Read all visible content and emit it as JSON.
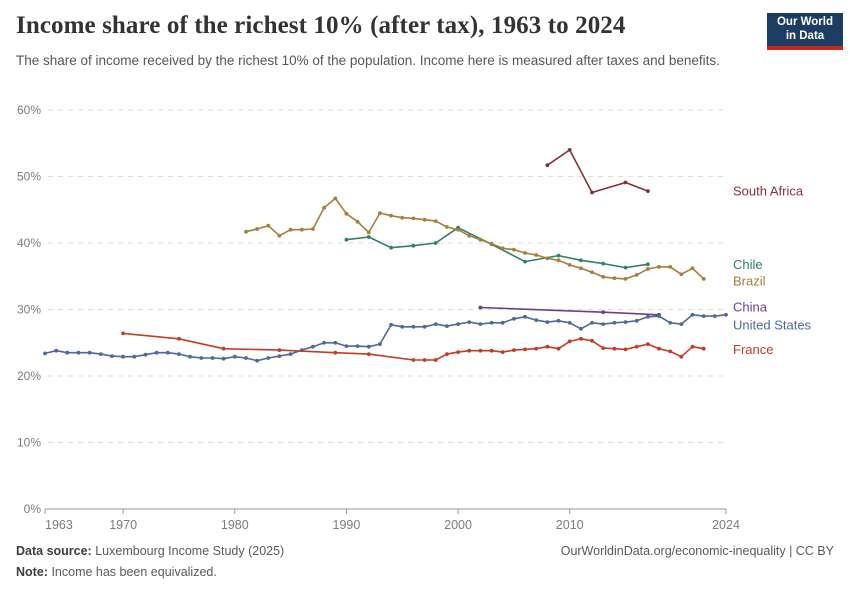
{
  "header": {
    "title": "Income share of the richest 10% (after tax), 1963 to 2024",
    "subtitle": "The share of income received by the richest 10% of the population. Income here is measured after taxes and benefits.",
    "logo": {
      "line1": "Our World",
      "line2": "in Data",
      "bg_color": "#1d3d63",
      "accent_color": "#c52a1b"
    }
  },
  "footer": {
    "source_label": "Data source:",
    "source_text": "Luxembourg Income Study (2025)",
    "link": "OurWorldinData.org/economic-inequality | CC BY",
    "note_label": "Note:",
    "note_text": "Income has been equivalized."
  },
  "chart_data": {
    "type": "line",
    "title": "Income share of the richest 10% (after tax), 1963 to 2024",
    "xlabel": "",
    "ylabel": "",
    "x_range": [
      1963,
      2024
    ],
    "ylim": [
      0,
      60
    ],
    "grid": "horizontal-dashed",
    "legend_position": "right-of-line-ends",
    "x_ticks": [
      1963,
      1970,
      1980,
      1990,
      2000,
      2010,
      2024
    ],
    "y_ticks": [
      0,
      10,
      20,
      30,
      40,
      50,
      60
    ],
    "y_tick_suffix": "%",
    "axis_color": "#999999",
    "grid_color": "#dcdcdc",
    "tick_label_color": "#7d7d7d",
    "series": [
      {
        "name": "South Africa",
        "color": "#883039",
        "label_dy": 0,
        "points": [
          [
            2008,
            51.7
          ],
          [
            2010,
            54.0
          ],
          [
            2012,
            47.6
          ],
          [
            2015,
            49.1
          ],
          [
            2017,
            47.8
          ]
        ]
      },
      {
        "name": "Chile",
        "color": "#2C8465",
        "label_dy": 0,
        "points": [
          [
            1990,
            40.5
          ],
          [
            1992,
            40.9
          ],
          [
            1994,
            39.3
          ],
          [
            1996,
            39.6
          ],
          [
            1998,
            40.0
          ],
          [
            2000,
            42.3
          ],
          [
            2003,
            39.8
          ],
          [
            2006,
            37.2
          ],
          [
            2009,
            38.1
          ],
          [
            2011,
            37.4
          ],
          [
            2013,
            36.9
          ],
          [
            2015,
            36.3
          ],
          [
            2017,
            36.8
          ]
        ]
      },
      {
        "name": "Brazil",
        "color": "#A87E3B",
        "label_dy": 2,
        "points": [
          [
            1981,
            41.7
          ],
          [
            1982,
            42.1
          ],
          [
            1983,
            42.6
          ],
          [
            1984,
            41.1
          ],
          [
            1985,
            42.0
          ],
          [
            1986,
            42.0
          ],
          [
            1987,
            42.1
          ],
          [
            1988,
            45.3
          ],
          [
            1989,
            46.7
          ],
          [
            1990,
            44.4
          ],
          [
            1991,
            43.2
          ],
          [
            1992,
            41.6
          ],
          [
            1993,
            44.5
          ],
          [
            1994,
            44.1
          ],
          [
            1995,
            43.8
          ],
          [
            1996,
            43.7
          ],
          [
            1997,
            43.5
          ],
          [
            1998,
            43.3
          ],
          [
            1999,
            42.4
          ],
          [
            2000,
            42.0
          ],
          [
            2001,
            41.1
          ],
          [
            2002,
            40.5
          ],
          [
            2003,
            39.9
          ],
          [
            2004,
            39.2
          ],
          [
            2005,
            39.0
          ],
          [
            2006,
            38.5
          ],
          [
            2007,
            38.2
          ],
          [
            2008,
            37.7
          ],
          [
            2009,
            37.4
          ],
          [
            2010,
            36.7
          ],
          [
            2011,
            36.2
          ],
          [
            2012,
            35.6
          ],
          [
            2013,
            34.9
          ],
          [
            2014,
            34.7
          ],
          [
            2015,
            34.6
          ],
          [
            2016,
            35.2
          ],
          [
            2017,
            36.1
          ],
          [
            2018,
            36.4
          ],
          [
            2019,
            36.4
          ],
          [
            2020,
            35.3
          ],
          [
            2021,
            36.2
          ],
          [
            2022,
            34.6
          ]
        ]
      },
      {
        "name": "China",
        "color": "#6D3E91",
        "label_dy": -8,
        "points": [
          [
            2002,
            30.3
          ],
          [
            2013,
            29.6
          ],
          [
            2018,
            29.2
          ]
        ]
      },
      {
        "name": "United States",
        "color": "#4C6A9C",
        "label_dy": 10,
        "points": [
          [
            1963,
            23.4
          ],
          [
            1964,
            23.8
          ],
          [
            1965,
            23.5
          ],
          [
            1966,
            23.5
          ],
          [
            1967,
            23.5
          ],
          [
            1968,
            23.3
          ],
          [
            1969,
            23.0
          ],
          [
            1970,
            22.9
          ],
          [
            1971,
            22.9
          ],
          [
            1972,
            23.2
          ],
          [
            1973,
            23.5
          ],
          [
            1974,
            23.5
          ],
          [
            1975,
            23.3
          ],
          [
            1976,
            22.9
          ],
          [
            1977,
            22.7
          ],
          [
            1978,
            22.7
          ],
          [
            1979,
            22.6
          ],
          [
            1980,
            22.9
          ],
          [
            1981,
            22.7
          ],
          [
            1982,
            22.3
          ],
          [
            1983,
            22.7
          ],
          [
            1984,
            23.0
          ],
          [
            1985,
            23.3
          ],
          [
            1986,
            23.9
          ],
          [
            1987,
            24.4
          ],
          [
            1988,
            25.0
          ],
          [
            1989,
            25.0
          ],
          [
            1990,
            24.5
          ],
          [
            1991,
            24.5
          ],
          [
            1992,
            24.4
          ],
          [
            1993,
            24.8
          ],
          [
            1994,
            27.7
          ],
          [
            1995,
            27.4
          ],
          [
            1996,
            27.4
          ],
          [
            1997,
            27.4
          ],
          [
            1998,
            27.8
          ],
          [
            1999,
            27.5
          ],
          [
            2000,
            27.8
          ],
          [
            2001,
            28.1
          ],
          [
            2002,
            27.8
          ],
          [
            2003,
            28.0
          ],
          [
            2004,
            28.0
          ],
          [
            2005,
            28.6
          ],
          [
            2006,
            28.9
          ],
          [
            2007,
            28.4
          ],
          [
            2008,
            28.1
          ],
          [
            2009,
            28.3
          ],
          [
            2010,
            28.0
          ],
          [
            2011,
            27.1
          ],
          [
            2012,
            28.0
          ],
          [
            2013,
            27.8
          ],
          [
            2014,
            28.0
          ],
          [
            2015,
            28.1
          ],
          [
            2016,
            28.3
          ],
          [
            2017,
            28.9
          ],
          [
            2018,
            29.0
          ],
          [
            2019,
            28.0
          ],
          [
            2020,
            27.8
          ],
          [
            2021,
            29.2
          ],
          [
            2022,
            29.0
          ],
          [
            2023,
            29.0
          ],
          [
            2024,
            29.2
          ]
        ]
      },
      {
        "name": "France",
        "color": "#C13D26",
        "label_dy": 1,
        "points": [
          [
            1970,
            26.4
          ],
          [
            1975,
            25.6
          ],
          [
            1979,
            24.1
          ],
          [
            1984,
            23.9
          ],
          [
            1989,
            23.5
          ],
          [
            1992,
            23.3
          ],
          [
            1996,
            22.4
          ],
          [
            1997,
            22.4
          ],
          [
            1998,
            22.4
          ],
          [
            1999,
            23.3
          ],
          [
            2000,
            23.6
          ],
          [
            2001,
            23.8
          ],
          [
            2002,
            23.8
          ],
          [
            2003,
            23.8
          ],
          [
            2004,
            23.6
          ],
          [
            2005,
            23.9
          ],
          [
            2006,
            24.0
          ],
          [
            2007,
            24.1
          ],
          [
            2008,
            24.4
          ],
          [
            2009,
            24.1
          ],
          [
            2010,
            25.2
          ],
          [
            2011,
            25.6
          ],
          [
            2012,
            25.3
          ],
          [
            2013,
            24.2
          ],
          [
            2014,
            24.1
          ],
          [
            2015,
            24.0
          ],
          [
            2016,
            24.4
          ],
          [
            2017,
            24.8
          ],
          [
            2018,
            24.1
          ],
          [
            2019,
            23.7
          ],
          [
            2020,
            22.9
          ],
          [
            2021,
            24.4
          ],
          [
            2022,
            24.1
          ]
        ]
      }
    ]
  }
}
